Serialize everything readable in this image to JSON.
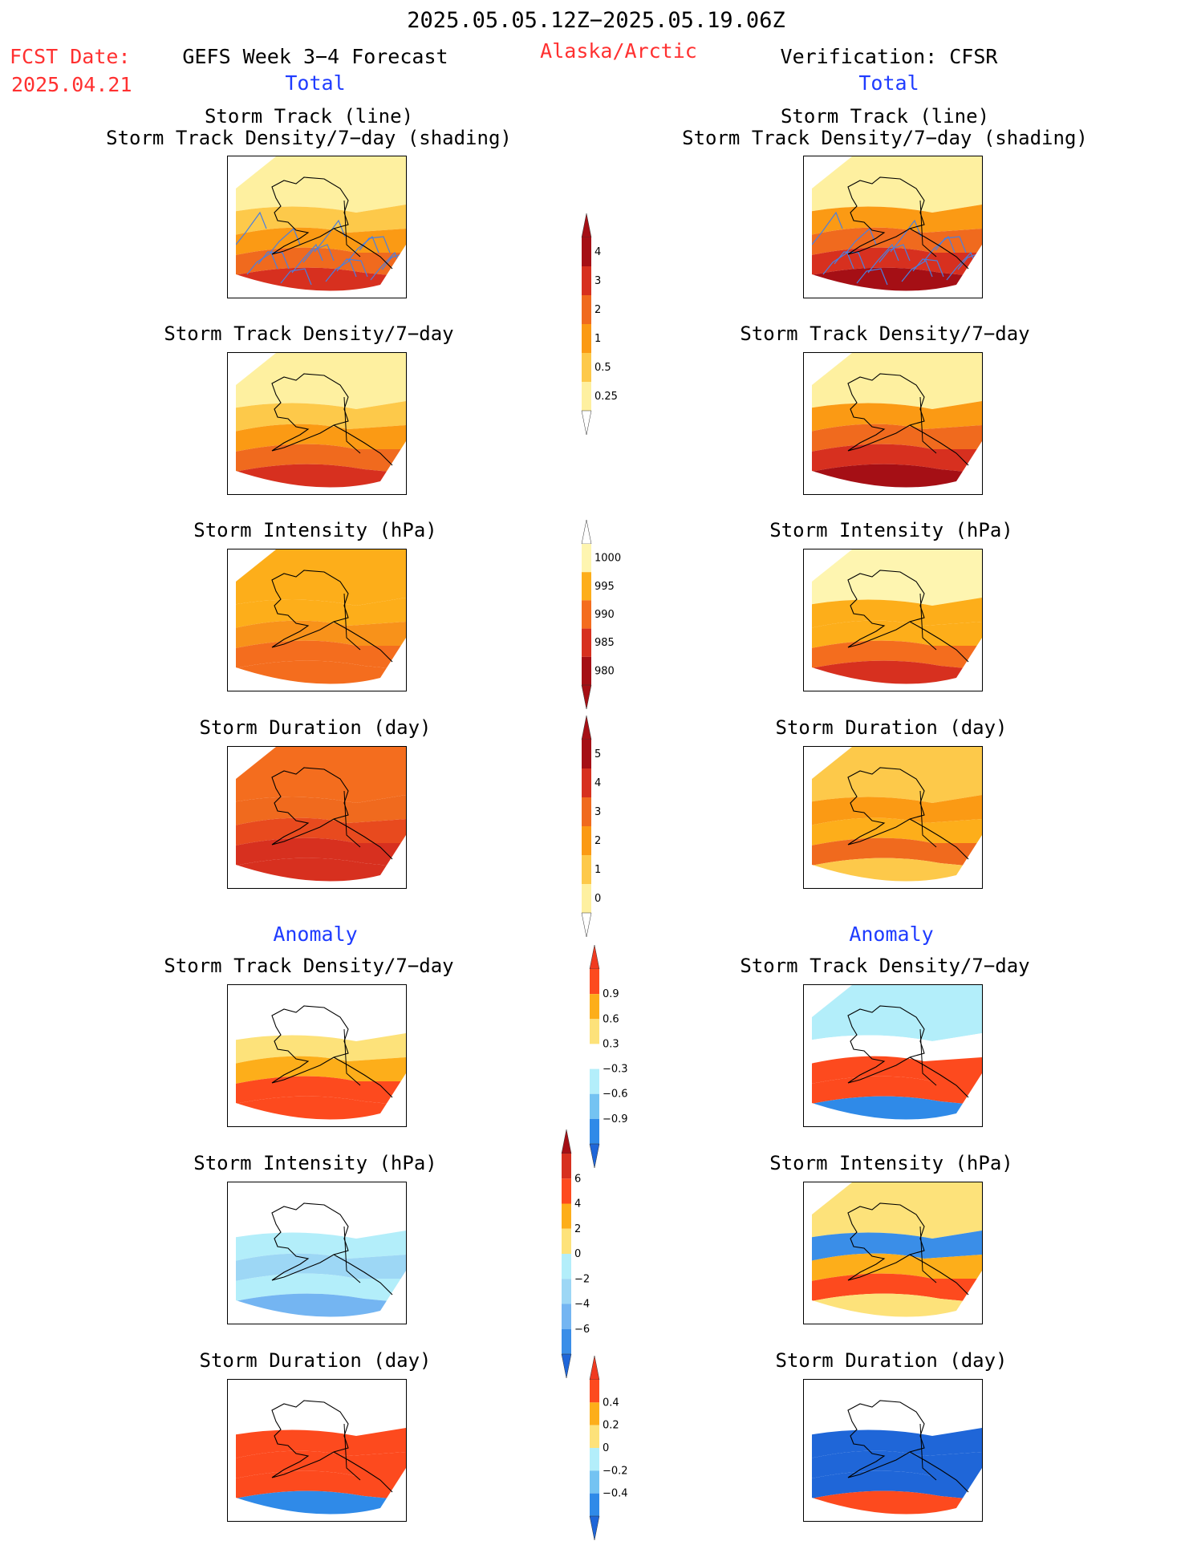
{
  "header": {
    "date_range": "2025.05.05.12Z−2025.05.19.06Z",
    "fcst_label": "FCST Date:",
    "fcst_date": "2025.04.21",
    "forecast_title": "GEFS Week 3−4 Forecast",
    "region": "Alaska/Arctic",
    "verification_title": "Verification: CFSR",
    "total_left": "Total",
    "total_right": "Total",
    "anomaly_left": "Anomaly",
    "anomaly_right": "Anomaly"
  },
  "panels": {
    "track_line": "Storm Track (line)",
    "track_shading": "Storm Track Density/7−day (shading)",
    "density": "Storm Track Density/7−day",
    "intensity": "Storm Intensity (hPa)",
    "duration": "Storm Duration (day)"
  },
  "colorbars": [
    {
      "name": "density-total",
      "labels": [
        "4",
        "3",
        "2",
        "1",
        "0.5",
        "0.25"
      ],
      "colors": [
        "#a50f15",
        "#d7301f",
        "#f06a1e",
        "#fb9a14",
        "#fdc94a",
        "#fef0a0"
      ],
      "arrow_top": "#a50f15",
      "arrow_bottom": "#ffffff"
    },
    {
      "name": "intensity-total",
      "labels": [
        "1000",
        "995",
        "990",
        "985",
        "980"
      ],
      "colors": [
        "#fef5b0",
        "#fdae1a",
        "#f46d1e",
        "#d7301f",
        "#a50f15"
      ],
      "arrow_top": "#ffffff",
      "arrow_bottom": "#a50f15"
    },
    {
      "name": "duration-total",
      "labels": [
        "5",
        "4",
        "3",
        "2",
        "1",
        "0"
      ],
      "colors": [
        "#a50f15",
        "#d7301f",
        "#f06a1e",
        "#fb9a14",
        "#fdc94a",
        "#fef0a0"
      ],
      "arrow_top": "#a50f15",
      "arrow_bottom": "#ffffff"
    },
    {
      "name": "density-anomaly",
      "labels": [
        "0.9",
        "0.6",
        "0.3",
        "−0.3",
        "−0.6",
        "−0.9"
      ],
      "colors": [
        "#fd4a1e",
        "#fdae1a",
        "#fde27a",
        "#ffffff",
        "#b3eefa",
        "#74c3f2",
        "#2f8ae8"
      ],
      "arrow_top": "#f03b20",
      "arrow_bottom": "#1f66d8"
    },
    {
      "name": "intensity-anomaly",
      "labels": [
        "6",
        "4",
        "2",
        "0",
        "−2",
        "−4",
        "−6"
      ],
      "colors": [
        "#d7301f",
        "#fd4a1e",
        "#fdae1a",
        "#fde27a",
        "#b3eefa",
        "#9dd7f5",
        "#74b5f2",
        "#3a8ee8"
      ],
      "arrow_top": "#a50f15",
      "arrow_bottom": "#1f66d8"
    },
    {
      "name": "duration-anomaly",
      "labels": [
        "0.4",
        "0.2",
        "0",
        "−0.2",
        "−0.4"
      ],
      "colors": [
        "#fd4a1e",
        "#fdae1a",
        "#fde27a",
        "#b3eefa",
        "#74c3f2",
        "#2f8ae8"
      ],
      "arrow_top": "#f03b20",
      "arrow_bottom": "#1f66d8"
    }
  ],
  "maps": [
    {
      "name": "fcst-track",
      "fill": [
        "#fef0a0",
        "#fdc94a",
        "#fb9a14",
        "#f06a1e",
        "#d7301f"
      ],
      "tracks": true,
      "tracks_color": "#4a7fe0"
    },
    {
      "name": "cfsr-track",
      "fill": [
        "#fef0a0",
        "#fb9a14",
        "#f06a1e",
        "#d7301f",
        "#a50f15"
      ],
      "tracks": true,
      "tracks_color": "#4a7fe0"
    },
    {
      "name": "fcst-density",
      "fill": [
        "#fef0a0",
        "#fdc94a",
        "#fb9a14",
        "#f06a1e",
        "#d7301f"
      ]
    },
    {
      "name": "cfsr-density",
      "fill": [
        "#fef0a0",
        "#fb9a14",
        "#f06a1e",
        "#d7301f",
        "#a50f15"
      ]
    },
    {
      "name": "fcst-intensity",
      "fill": [
        "#fdae1a",
        "#fdae1a",
        "#f8921a",
        "#f46d1e",
        "#f46d1e"
      ]
    },
    {
      "name": "cfsr-intensity",
      "fill": [
        "#fef5b0",
        "#fdae1a",
        "#fdae1a",
        "#f46d1e",
        "#d7301f"
      ]
    },
    {
      "name": "fcst-duration",
      "fill": [
        "#f46d1e",
        "#f06a1e",
        "#e84a1e",
        "#d7301f",
        "#d7301f"
      ]
    },
    {
      "name": "cfsr-duration",
      "fill": [
        "#fdc94a",
        "#fb9a14",
        "#fdae1a",
        "#f06a1e",
        "#fdc94a"
      ]
    },
    {
      "name": "fcst-density-anom",
      "fill": [
        "#ffffff",
        "#fde27a",
        "#fdae1a",
        "#fd4a1e",
        "#fd4a1e"
      ]
    },
    {
      "name": "cfsr-density-anom",
      "fill": [
        "#b3eefa",
        "#ffffff",
        "#fd4a1e",
        "#fd4a1e",
        "#2f8ae8"
      ]
    },
    {
      "name": "fcst-intensity-anom",
      "fill": [
        "#ffffff",
        "#b3eefa",
        "#9dd7f5",
        "#b3eefa",
        "#74b5f2"
      ]
    },
    {
      "name": "cfsr-intensity-anom",
      "fill": [
        "#fde27a",
        "#3a8ee8",
        "#fdae1a",
        "#fd4a1e",
        "#fde27a"
      ]
    },
    {
      "name": "fcst-duration-anom",
      "fill": [
        "#ffffff",
        "#fd4a1e",
        "#fd4a1e",
        "#fd4a1e",
        "#2f8ae8"
      ]
    },
    {
      "name": "cfsr-duration-anom",
      "fill": [
        "#ffffff",
        "#1f66d8",
        "#1f66d8",
        "#1f66d8",
        "#fd4a1e"
      ]
    }
  ]
}
